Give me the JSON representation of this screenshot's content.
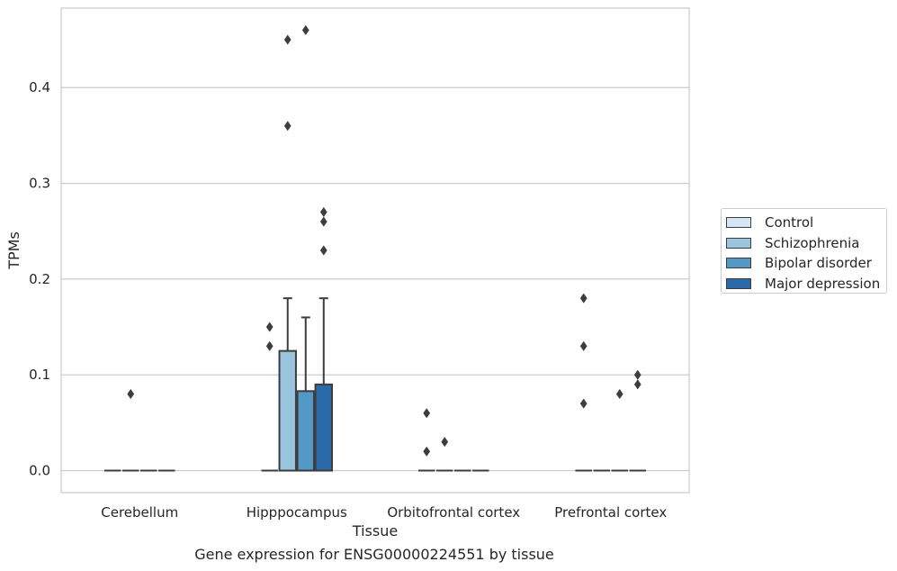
{
  "caption": "Gene expression for ENSG00000224551 by tissue",
  "chart_data": {
    "type": "box",
    "title": "",
    "xlabel": "Tissue",
    "ylabel": "TPMs",
    "categories": [
      "Cerebellum",
      "Hipppocampus",
      "Orbitofrontal cortex",
      "Prefrontal cortex"
    ],
    "ylim": [
      -0.023,
      0.483
    ],
    "yticks": [
      0.0,
      0.1,
      0.2,
      0.3,
      0.4
    ],
    "ytick_labels": [
      "0.0",
      "0.1",
      "0.2",
      "0.3",
      "0.4"
    ],
    "grid": "horizontal",
    "legend_position": "right",
    "series": [
      {
        "name": "Control",
        "color": "#d5e5f3",
        "boxes": [
          {
            "min": 0,
            "q1": 0,
            "median": 0,
            "q3": 0,
            "max": 0,
            "outliers": []
          },
          {
            "min": 0,
            "q1": 0,
            "median": 0,
            "q3": 0,
            "max": 0,
            "outliers": [
              0.13,
              0.15
            ]
          },
          {
            "min": 0,
            "q1": 0,
            "median": 0,
            "q3": 0,
            "max": 0,
            "outliers": [
              0.02,
              0.06
            ]
          },
          {
            "min": 0,
            "q1": 0,
            "median": 0,
            "q3": 0,
            "max": 0,
            "outliers": [
              0.07,
              0.13,
              0.18
            ]
          }
        ]
      },
      {
        "name": "Schizophrenia",
        "color": "#9ac5de",
        "boxes": [
          {
            "min": 0,
            "q1": 0,
            "median": 0,
            "q3": 0,
            "max": 0,
            "outliers": [
              0.08
            ]
          },
          {
            "min": 0,
            "q1": 0,
            "median": 0,
            "q3": 0.125,
            "max": 0.18,
            "outliers": [
              0.36,
              0.45
            ]
          },
          {
            "min": 0,
            "q1": 0,
            "median": 0,
            "q3": 0,
            "max": 0,
            "outliers": [
              0.03
            ]
          },
          {
            "min": 0,
            "q1": 0,
            "median": 0,
            "q3": 0,
            "max": 0,
            "outliers": []
          }
        ]
      },
      {
        "name": "Bipolar disorder",
        "color": "#5498c6",
        "boxes": [
          {
            "min": 0,
            "q1": 0,
            "median": 0,
            "q3": 0,
            "max": 0,
            "outliers": []
          },
          {
            "min": 0,
            "q1": 0,
            "median": 0,
            "q3": 0.083,
            "max": 0.16,
            "outliers": [
              0.46
            ]
          },
          {
            "min": 0,
            "q1": 0,
            "median": 0,
            "q3": 0,
            "max": 0,
            "outliers": []
          },
          {
            "min": 0,
            "q1": 0,
            "median": 0,
            "q3": 0,
            "max": 0,
            "outliers": [
              0.08
            ]
          }
        ]
      },
      {
        "name": "Major depression",
        "color": "#2a6aa8",
        "boxes": [
          {
            "min": 0,
            "q1": 0,
            "median": 0,
            "q3": 0,
            "max": 0,
            "outliers": []
          },
          {
            "min": 0,
            "q1": 0,
            "median": 0,
            "q3": 0.09,
            "max": 0.18,
            "outliers": [
              0.23,
              0.26,
              0.27
            ]
          },
          {
            "min": 0,
            "q1": 0,
            "median": 0,
            "q3": 0,
            "max": 0,
            "outliers": []
          },
          {
            "min": 0,
            "q1": 0,
            "median": 0,
            "q3": 0,
            "max": 0,
            "outliers": [
              0.09,
              0.1
            ]
          }
        ]
      }
    ]
  }
}
